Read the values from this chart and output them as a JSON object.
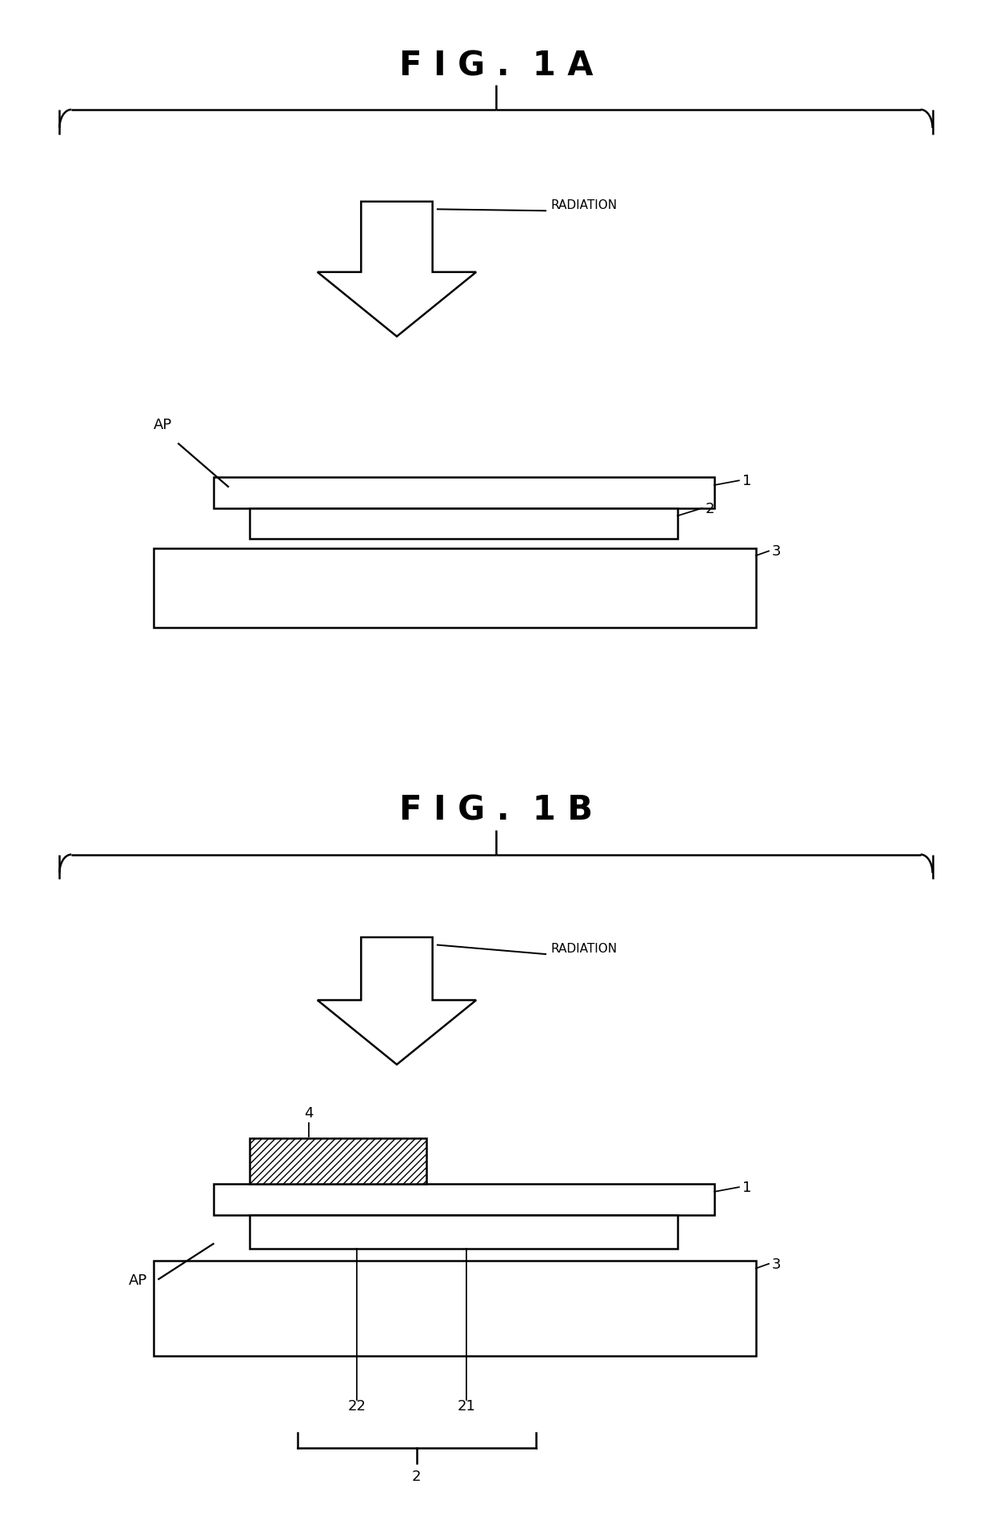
{
  "fig_title_1A": "F I G .  1 A",
  "fig_title_1B": "F I G .  1 B",
  "bg_color": "#ffffff",
  "line_color": "#000000",
  "radiation_label": "RADIATION",
  "ap_label": "AP"
}
